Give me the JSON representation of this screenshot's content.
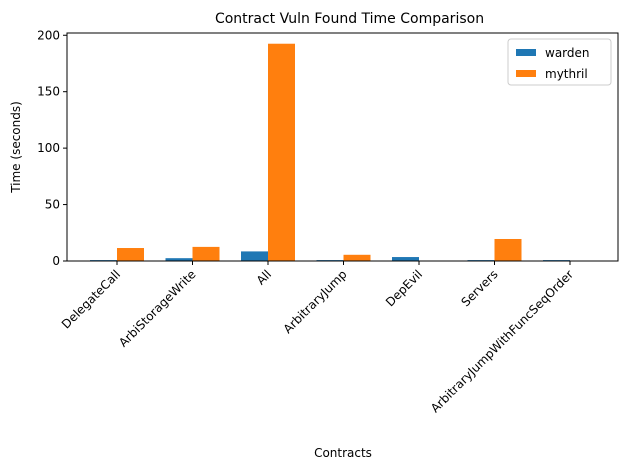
{
  "chart_data": {
    "type": "bar",
    "title": "Contract Vuln Found Time Comparison",
    "xlabel": "Contracts",
    "ylabel": "Time (seconds)",
    "categories": [
      "DelegateCall",
      "ArbiStorageWrite",
      "All",
      "ArbitraryJump",
      "DepEvil",
      "Servers",
      "ArbitraryJumpWithFuncSeqOrder"
    ],
    "series": [
      {
        "name": "warden",
        "color": "#1f77b4",
        "values": [
          0.8,
          2.5,
          8.5,
          0.8,
          3.5,
          0.8,
          0.8
        ]
      },
      {
        "name": "mythril",
        "color": "#ff7f0e",
        "values": [
          11.5,
          12.5,
          192.5,
          5.5,
          0,
          19.5,
          0
        ]
      }
    ],
    "ylim": [
      0,
      202
    ],
    "yticks": [
      0,
      50,
      100,
      150,
      200
    ],
    "legend": "top-right",
    "grid": false
  }
}
